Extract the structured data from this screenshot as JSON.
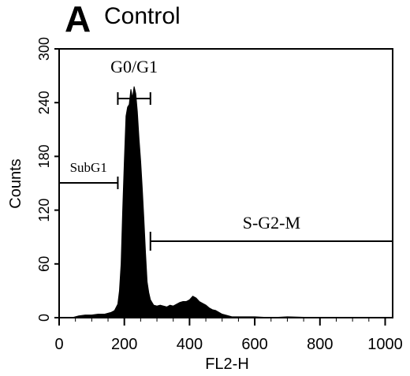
{
  "panel": {
    "letter": "A",
    "title": "Control"
  },
  "chart_data": {
    "type": "histogram",
    "xlabel": "FL2-H",
    "ylabel": "Counts",
    "xlim": [
      0,
      1023
    ],
    "ylim": [
      0,
      300
    ],
    "x_ticks": [
      0,
      200,
      400,
      600,
      800,
      1000
    ],
    "y_ticks": [
      0,
      60,
      120,
      180,
      240,
      300
    ],
    "grid": false,
    "legend": "none",
    "color": "#000000",
    "series": [
      {
        "x": [
          40,
          60,
          80,
          100,
          120,
          140,
          150,
          160,
          170,
          180,
          185,
          190,
          195,
          200,
          205,
          210,
          215,
          220,
          225,
          230,
          235,
          240,
          245,
          250,
          255,
          260,
          265,
          270,
          275,
          280,
          290,
          300,
          310,
          320,
          330,
          340,
          350,
          360,
          370,
          380,
          390,
          400,
          410,
          420,
          430,
          440,
          450,
          460,
          470,
          480,
          490,
          500,
          510,
          520,
          530,
          540,
          560,
          580,
          600,
          650,
          700,
          800,
          900,
          1000
        ],
        "y": [
          0,
          2,
          3,
          3,
          4,
          4,
          5,
          6,
          8,
          15,
          30,
          60,
          120,
          175,
          225,
          235,
          238,
          255,
          245,
          258,
          250,
          230,
          200,
          175,
          145,
          110,
          72,
          40,
          28,
          20,
          14,
          13,
          14,
          13,
          12,
          14,
          13,
          15,
          17,
          18,
          18,
          20,
          24,
          22,
          18,
          16,
          14,
          11,
          9,
          8,
          6,
          4,
          3,
          2,
          1,
          1,
          1,
          1,
          1,
          0,
          1,
          0,
          0,
          0
        ]
      }
    ],
    "annotations": [
      {
        "label": "G0/G1",
        "range": [
          180,
          280
        ]
      },
      {
        "label": "SubG1",
        "range": [
          0,
          180
        ]
      },
      {
        "label": "S-G2-M",
        "range": [
          280,
          1023
        ]
      }
    ]
  }
}
